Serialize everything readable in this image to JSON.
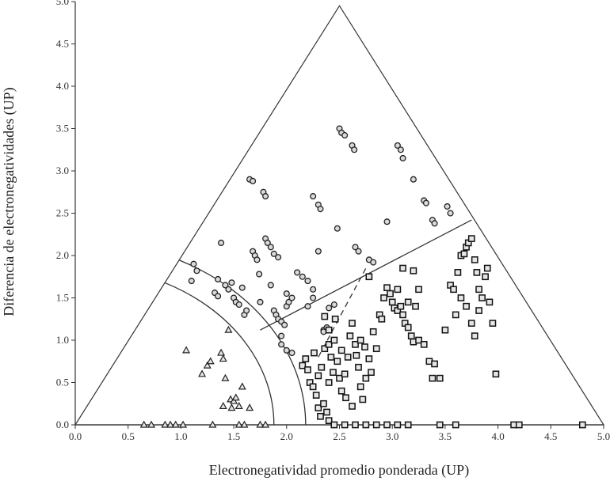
{
  "chart_data": {
    "type": "scatter",
    "xlabel": "Electronegatividad promedio ponderada (UP)",
    "ylabel": "Diferencia de electronegatividades (UP)",
    "xlim": [
      0,
      5
    ],
    "ylim": [
      0,
      5
    ],
    "x_ticks": [
      "0.0",
      "0.5",
      "1.0",
      "1.5",
      "2.0",
      "2.5",
      "3.0",
      "3.5",
      "4.0",
      "4.5",
      "5.0"
    ],
    "y_ticks": [
      "0.0",
      "0.5",
      "1.0",
      "1.5",
      "2.0",
      "2.5",
      "3.0",
      "3.5",
      "4.0",
      "4.5",
      "5.0"
    ],
    "grid": false,
    "triangle": [
      [
        0,
        0
      ],
      [
        2.5,
        4.95
      ],
      [
        5,
        0
      ]
    ],
    "boundaries": {
      "inner_arc": {
        "radius": 1.88
      },
      "outer_arc": {
        "radius": 2.18
      },
      "upper_line": [
        [
          1.75,
          1.12
        ],
        [
          3.75,
          2.42
        ]
      ],
      "dashed_line": [
        [
          2.3,
          0.8
        ],
        [
          2.75,
          1.85
        ]
      ]
    },
    "series": [
      {
        "marker": "triangle",
        "points": [
          [
            0.65,
            0
          ],
          [
            0.72,
            0
          ],
          [
            0.85,
            0
          ],
          [
            0.9,
            0
          ],
          [
            0.95,
            0
          ],
          [
            1.02,
            0
          ],
          [
            1.3,
            0
          ],
          [
            1.55,
            0
          ],
          [
            1.6,
            0
          ],
          [
            1.75,
            0
          ],
          [
            1.8,
            0
          ],
          [
            1.05,
            0.88
          ],
          [
            1.2,
            0.6
          ],
          [
            1.25,
            0.7
          ],
          [
            1.28,
            0.75
          ],
          [
            1.38,
            0.85
          ],
          [
            1.4,
            0.78
          ],
          [
            1.42,
            0.55
          ],
          [
            1.45,
            1.12
          ],
          [
            1.47,
            0.3
          ],
          [
            1.5,
            0.28
          ],
          [
            1.52,
            0.32
          ],
          [
            1.4,
            0.22
          ],
          [
            1.55,
            0.22
          ],
          [
            1.48,
            0.2
          ],
          [
            1.58,
            0.45
          ],
          [
            1.65,
            0.2
          ]
        ]
      },
      {
        "marker": "circle",
        "points": [
          [
            1.1,
            1.7
          ],
          [
            1.12,
            1.9
          ],
          [
            1.15,
            1.82
          ],
          [
            1.38,
            2.15
          ],
          [
            1.35,
            1.72
          ],
          [
            1.42,
            1.65
          ],
          [
            1.45,
            1.6
          ],
          [
            1.48,
            1.68
          ],
          [
            1.5,
            1.5
          ],
          [
            1.32,
            1.56
          ],
          [
            1.35,
            1.52
          ],
          [
            1.52,
            1.45
          ],
          [
            1.55,
            1.42
          ],
          [
            1.58,
            1.62
          ],
          [
            1.6,
            1.3
          ],
          [
            1.62,
            1.35
          ],
          [
            1.65,
            2.9
          ],
          [
            1.68,
            2.88
          ],
          [
            1.68,
            2.05
          ],
          [
            1.7,
            2.0
          ],
          [
            1.72,
            1.95
          ],
          [
            1.74,
            1.78
          ],
          [
            1.75,
            1.45
          ],
          [
            1.78,
            2.75
          ],
          [
            1.8,
            2.7
          ],
          [
            1.8,
            2.2
          ],
          [
            1.82,
            2.15
          ],
          [
            1.85,
            2.1
          ],
          [
            1.85,
            1.65
          ],
          [
            1.88,
            1.35
          ],
          [
            1.9,
            1.3
          ],
          [
            1.92,
            1.25
          ],
          [
            1.95,
            1.22
          ],
          [
            1.95,
            1.05
          ],
          [
            1.98,
            1.18
          ],
          [
            2.0,
            1.4
          ],
          [
            2.02,
            1.45
          ],
          [
            2.05,
            1.5
          ],
          [
            1.88,
            2.02
          ],
          [
            1.92,
            1.98
          ],
          [
            2.0,
            1.55
          ],
          [
            1.95,
            0.95
          ],
          [
            2.0,
            0.88
          ],
          [
            2.05,
            0.85
          ],
          [
            2.1,
            1.8
          ],
          [
            2.15,
            1.75
          ],
          [
            2.2,
            1.7
          ],
          [
            2.25,
            1.5
          ],
          [
            2.25,
            1.6
          ],
          [
            2.2,
            1.4
          ],
          [
            2.3,
            2.05
          ],
          [
            2.35,
            1.12
          ],
          [
            2.25,
            2.7
          ],
          [
            2.3,
            2.6
          ],
          [
            2.32,
            2.55
          ],
          [
            2.35,
            1.1
          ],
          [
            2.38,
            1.15
          ],
          [
            2.4,
            1.38
          ],
          [
            2.45,
            1.42
          ],
          [
            2.48,
            2.32
          ],
          [
            2.5,
            3.5
          ],
          [
            2.52,
            3.45
          ],
          [
            2.55,
            3.42
          ],
          [
            2.62,
            3.3
          ],
          [
            2.64,
            3.25
          ],
          [
            2.65,
            2.1
          ],
          [
            2.68,
            2.05
          ],
          [
            2.78,
            1.95
          ],
          [
            2.82,
            1.92
          ],
          [
            2.95,
            2.4
          ],
          [
            3.05,
            3.3
          ],
          [
            3.08,
            3.25
          ],
          [
            3.1,
            3.15
          ],
          [
            3.2,
            2.9
          ],
          [
            3.3,
            2.65
          ],
          [
            3.32,
            2.62
          ],
          [
            3.38,
            2.42
          ],
          [
            3.4,
            2.38
          ],
          [
            3.52,
            2.58
          ],
          [
            3.55,
            2.5
          ]
        ]
      },
      {
        "marker": "square",
        "points": [
          [
            2.15,
            0.7
          ],
          [
            2.18,
            0.78
          ],
          [
            2.2,
            0.65
          ],
          [
            2.22,
            0.5
          ],
          [
            2.25,
            0.45
          ],
          [
            2.28,
            0.35
          ],
          [
            2.3,
            0.2
          ],
          [
            2.32,
            0.1
          ],
          [
            2.35,
            0.25
          ],
          [
            2.38,
            0.15
          ],
          [
            2.4,
            0.05
          ],
          [
            2.3,
            0.58
          ],
          [
            2.33,
            0.68
          ],
          [
            2.36,
            0.9
          ],
          [
            2.4,
            0.95
          ],
          [
            2.42,
            0.8
          ],
          [
            2.45,
            1.0
          ],
          [
            2.48,
            0.75
          ],
          [
            2.5,
            0.55
          ],
          [
            2.52,
            0.4
          ],
          [
            2.55,
            0.6
          ],
          [
            2.58,
            0.8
          ],
          [
            2.6,
            1.05
          ],
          [
            2.62,
            1.2
          ],
          [
            2.65,
            0.95
          ],
          [
            2.68,
            0.68
          ],
          [
            2.7,
            0.45
          ],
          [
            2.72,
            0.3
          ],
          [
            2.75,
            0.55
          ],
          [
            2.78,
            0.78
          ],
          [
            2.8,
            0.62
          ],
          [
            2.82,
            1.1
          ],
          [
            2.85,
            0.9
          ],
          [
            2.88,
            1.3
          ],
          [
            2.9,
            1.25
          ],
          [
            2.92,
            1.5
          ],
          [
            2.95,
            1.62
          ],
          [
            2.98,
            1.55
          ],
          [
            3.0,
            1.45
          ],
          [
            3.02,
            1.38
          ],
          [
            3.05,
            1.35
          ],
          [
            3.08,
            1.4
          ],
          [
            3.1,
            1.3
          ],
          [
            3.12,
            1.2
          ],
          [
            3.15,
            1.15
          ],
          [
            3.18,
            1.05
          ],
          [
            3.2,
            0.98
          ],
          [
            3.25,
            1.0
          ],
          [
            3.3,
            0.95
          ],
          [
            3.35,
            0.75
          ],
          [
            3.38,
            0.55
          ],
          [
            3.4,
            0.72
          ],
          [
            3.45,
            0.55
          ],
          [
            2.78,
            1.75
          ],
          [
            3.1,
            1.85
          ],
          [
            3.2,
            1.82
          ],
          [
            3.25,
            1.6
          ],
          [
            3.22,
            1.4
          ],
          [
            3.15,
            1.45
          ],
          [
            3.05,
            1.6
          ],
          [
            3.5,
            1.12
          ],
          [
            3.55,
            1.65
          ],
          [
            3.58,
            1.6
          ],
          [
            3.62,
            1.8
          ],
          [
            3.65,
            2.0
          ],
          [
            3.68,
            2.02
          ],
          [
            3.7,
            2.1
          ],
          [
            3.72,
            2.15
          ],
          [
            3.75,
            2.2
          ],
          [
            3.78,
            1.95
          ],
          [
            3.8,
            1.8
          ],
          [
            3.82,
            1.6
          ],
          [
            3.85,
            1.5
          ],
          [
            3.88,
            1.75
          ],
          [
            3.9,
            1.85
          ],
          [
            3.92,
            1.45
          ],
          [
            3.95,
            1.2
          ],
          [
            3.98,
            0.6
          ],
          [
            3.75,
            1.2
          ],
          [
            3.7,
            1.4
          ],
          [
            3.65,
            1.5
          ],
          [
            3.6,
            1.3
          ],
          [
            3.78,
            1.05
          ],
          [
            3.82,
            1.35
          ],
          [
            2.45,
            0.0
          ],
          [
            2.55,
            0.0
          ],
          [
            2.65,
            0.0
          ],
          [
            2.75,
            0.0
          ],
          [
            2.85,
            0.0
          ],
          [
            2.95,
            0.0
          ],
          [
            3.05,
            0.0
          ],
          [
            3.15,
            0.0
          ],
          [
            3.45,
            0.0
          ],
          [
            3.6,
            0.0
          ],
          [
            4.15,
            0.0
          ],
          [
            4.2,
            0.0
          ],
          [
            4.8,
            0.0
          ],
          [
            2.4,
            0.5
          ],
          [
            2.44,
            0.62
          ],
          [
            2.56,
            0.32
          ],
          [
            2.62,
            0.22
          ],
          [
            2.66,
            0.82
          ],
          [
            2.7,
            1.0
          ],
          [
            2.74,
            0.92
          ],
          [
            2.52,
            0.88
          ],
          [
            2.46,
            1.25
          ],
          [
            2.36,
            1.28
          ],
          [
            2.26,
            0.85
          ],
          [
            2.4,
            1.12
          ]
        ]
      }
    ]
  }
}
